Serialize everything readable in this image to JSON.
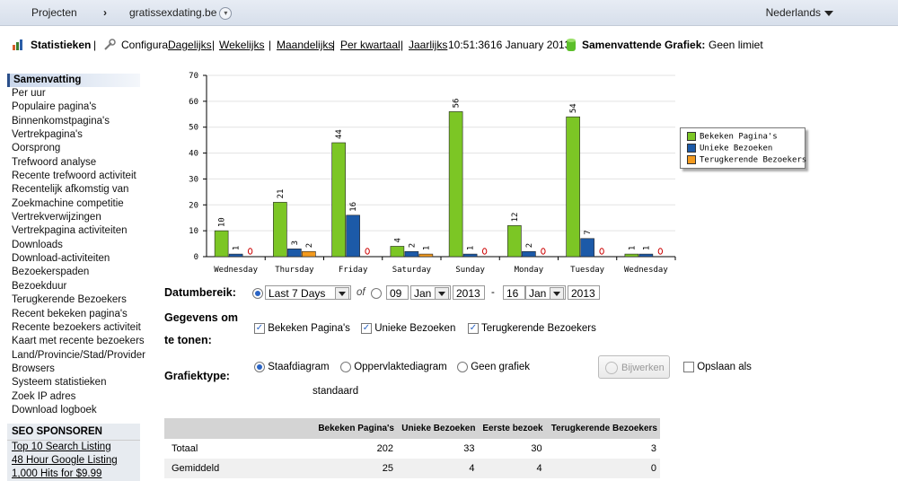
{
  "topbar": {
    "projects_label": "Projecten",
    "separator": "›",
    "site": "gratissexdating.be",
    "language": "Nederlands"
  },
  "nav": {
    "stats": "Statistieken",
    "divider": "|",
    "config": "Configura",
    "daily": "Dagelijks",
    "weekly": "Wekelijks",
    "monthly": "Maandelijks",
    "quarterly": "Per kwartaal",
    "yearly": "Jaarlijks",
    "time": "10:51:36",
    "date": "16 January 2013",
    "summary_label": "Samenvattende Grafiek:",
    "summary_value": "Geen limiet"
  },
  "sidebar": {
    "heading": "Samenvatting",
    "items": [
      "Per uur",
      "Populaire pagina's",
      "Binnenkomstpagina's",
      "Vertrekpagina's",
      "Oorsprong",
      "Trefwoord analyse",
      "Recente trefwoord activiteit",
      "Recentelijk afkomstig van",
      "Zoekmachine competitie",
      "Vertrekverwijzingen",
      "Vertrekpagina activiteiten",
      "Downloads",
      "Download-activiteiten",
      "Bezoekerspaden",
      "Bezoekduur",
      "Terugkerende Bezoekers",
      "Recent bekeken pagina's",
      "Recente bezoekers activiteit",
      "Kaart met recente bezoekers",
      "Land/Provincie/Stad/Provider",
      "Browsers",
      "Systeem statistieken",
      "Zoek IP adres",
      "Download logboek"
    ]
  },
  "seo": {
    "title": "SEO SPONSOREN",
    "links": [
      "Top 10 Search Listing",
      "48 Hour Google Listing",
      "1,000 Hits for $9.99"
    ]
  },
  "colors": {
    "green": "#7cc625",
    "blue": "#1c5aa8",
    "orange": "#f39a1e",
    "zero_marker": "#cc0000"
  },
  "chart_data": {
    "type": "bar",
    "categories": [
      "Wednesday",
      "Thursday",
      "Friday",
      "Saturday",
      "Sunday",
      "Monday",
      "Tuesday",
      "Wednesday"
    ],
    "ylim": [
      0,
      70
    ],
    "yticks": [
      0,
      10,
      20,
      30,
      40,
      50,
      60,
      70
    ],
    "series": [
      {
        "name": "Bekeken Pagina's",
        "values": [
          10,
          21,
          44,
          4,
          56,
          12,
          54,
          1
        ]
      },
      {
        "name": "Unieke Bezoeken",
        "values": [
          1,
          3,
          16,
          2,
          1,
          2,
          7,
          1
        ]
      },
      {
        "name": "Terugkerende Bezoekers",
        "values": [
          0,
          2,
          0,
          1,
          0,
          0,
          0,
          0
        ]
      }
    ],
    "legend_position": "right",
    "grid": true
  },
  "form": {
    "range_label": "Datumbereik:",
    "range_value": "Last 7 Days",
    "or": "of",
    "from_day": "09",
    "from_month": "Jan",
    "from_year": "2013",
    "dash": "-",
    "to_day": "16",
    "to_month": "Jan",
    "to_year": "2013",
    "data_label_1": "Gegevens om",
    "data_label_2": "te tonen:",
    "show_views": "Bekeken Pagina's",
    "show_unique": "Unieke Bezoeken",
    "show_returning": "Terugkerende Bezoekers",
    "type_label": "Grafiektype:",
    "type_bar": "Staafdiagram",
    "type_area": "Oppervlaktediagram",
    "type_none": "Geen grafiek",
    "update": "Bijwerken",
    "save_as": "Opslaan als",
    "standard": "standaard"
  },
  "table": {
    "headers": [
      "",
      "Bekeken Pagina's",
      "Unieke Bezoeken",
      "Eerste bezoek",
      "Terugkerende Bezoekers"
    ],
    "rows": [
      [
        "Totaal",
        "202",
        "33",
        "30",
        "3"
      ],
      [
        "Gemiddeld",
        "25",
        "4",
        "4",
        "0"
      ]
    ]
  }
}
